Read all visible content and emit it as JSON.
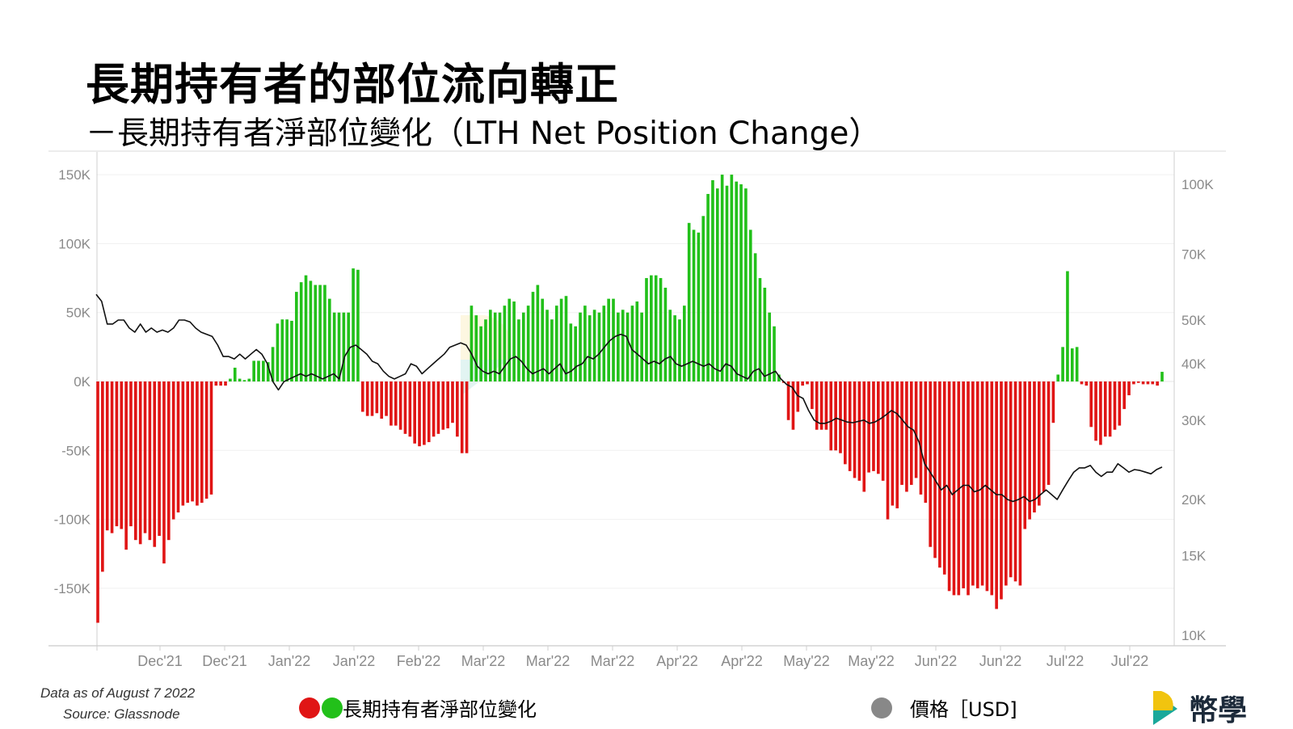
{
  "title": "長期持有者的部位流向轉正",
  "subtitle": "－長期持有者淨部位變化（LTH Net Position Change）",
  "footer": {
    "data_as_of": "Data as of August 7 2022",
    "source": "Source: Glassnode"
  },
  "legend": {
    "bars_label": "長期持有者淨部位變化",
    "price_label": "價格［USD]"
  },
  "logo": {
    "text": "幣學"
  },
  "colors": {
    "positive": "#22c01a",
    "negative": "#e01515",
    "price_line": "#111111",
    "legend_grey": "#888888",
    "logo_yellow": "#f1c40f",
    "logo_teal": "#1aa89a"
  },
  "chart_data": {
    "type": "bar",
    "x_tick_labels": [
      "Dec'21",
      "Dec'21",
      "Jan'22",
      "Jan'22",
      "Feb'22",
      "Mar'22",
      "Mar'22",
      "Mar'22",
      "Apr'22",
      "Apr'22",
      "May'22",
      "May'22",
      "Jun'22",
      "Jun'22",
      "Jul'22",
      "Jul'22"
    ],
    "y_left_ticks": [
      "150K",
      "100K",
      "50K",
      "0K",
      "-50K",
      "-100K",
      "-150K"
    ],
    "y_left_lim": [
      -175000,
      150000
    ],
    "y_right_ticks": [
      "100K",
      "70K",
      "50K",
      "40K",
      "30K",
      "20K",
      "15K",
      "10K"
    ],
    "y_right_scale": "log",
    "y_right_lim": [
      10000,
      100000
    ],
    "series": [
      {
        "name": "長期持有者淨部位變化",
        "type": "bar",
        "values": [
          -175000,
          -138000,
          -108000,
          -110000,
          -105000,
          -107000,
          -122000,
          -105000,
          -115000,
          -118000,
          -110000,
          -115000,
          -120000,
          -112000,
          -132000,
          -115000,
          -100000,
          -95000,
          -90000,
          -88000,
          -87000,
          -90000,
          -88000,
          -85000,
          -82000,
          -3000,
          -3000,
          -3000,
          2000,
          10000,
          2000,
          1000,
          2000,
          15000,
          15000,
          15000,
          14000,
          25000,
          42000,
          45000,
          45000,
          44000,
          65000,
          72000,
          77000,
          73000,
          70000,
          70000,
          70000,
          60000,
          50000,
          50000,
          50000,
          50000,
          82000,
          81000,
          -22000,
          -25000,
          -25000,
          -23000,
          -27000,
          -25000,
          -32000,
          -32000,
          -35000,
          -38000,
          -40000,
          -45000,
          -47000,
          -46000,
          -44000,
          -40000,
          -38000,
          -35000,
          -34000,
          -30000,
          -40000,
          -52000,
          -52000,
          55000,
          48000,
          40000,
          45000,
          52000,
          50000,
          50000,
          55000,
          60000,
          58000,
          45000,
          50000,
          55000,
          65000,
          70000,
          60000,
          52000,
          45000,
          55000,
          60000,
          62000,
          42000,
          40000,
          50000,
          55000,
          48000,
          52000,
          50000,
          55000,
          60000,
          60000,
          50000,
          52000,
          50000,
          55000,
          58000,
          50000,
          75000,
          77000,
          77000,
          75000,
          68000,
          52000,
          48000,
          45000,
          55000,
          115000,
          110000,
          108000,
          120000,
          136000,
          146000,
          140000,
          150000,
          142000,
          150000,
          145000,
          143000,
          140000,
          110000,
          93000,
          75000,
          68000,
          50000,
          40000,
          5000,
          -1000,
          -28000,
          -35000,
          -22000,
          -3000,
          -2000,
          -20000,
          -35000,
          -35000,
          -35000,
          -50000,
          -50000,
          -52000,
          -60000,
          -65000,
          -70000,
          -72000,
          -80000,
          -66000,
          -65000,
          -67000,
          -72000,
          -100000,
          -90000,
          -92000,
          -75000,
          -80000,
          -75000,
          -70000,
          -82000,
          -88000,
          -120000,
          -128000,
          -135000,
          -140000,
          -152000,
          -155000,
          -155000,
          -150000,
          -155000,
          -148000,
          -150000,
          -148000,
          -152000,
          -155000,
          -165000,
          -158000,
          -148000,
          -142000,
          -145000,
          -148000,
          -107000,
          -100000,
          -95000,
          -90000,
          -80000,
          -75000,
          -30000,
          5000,
          25000,
          80000,
          24000,
          25000,
          -2000,
          -3000,
          -33000,
          -43000,
          -46000,
          -40000,
          -40000,
          -35000,
          -32000,
          -20000,
          -10000,
          -2000,
          -1000,
          -2000,
          -2000,
          -2000,
          -3000,
          7000
        ]
      },
      {
        "name": "價格［USD]",
        "type": "line",
        "values": [
          57000,
          55000,
          49000,
          49000,
          50000,
          50000,
          48000,
          47000,
          49000,
          47000,
          48000,
          47000,
          47500,
          47000,
          48000,
          50000,
          50000,
          49500,
          48000,
          47000,
          46500,
          46000,
          44000,
          41500,
          41500,
          41000,
          42000,
          41000,
          42000,
          43000,
          42000,
          40000,
          36500,
          35000,
          36500,
          37000,
          37500,
          38000,
          37500,
          38000,
          37500,
          37000,
          37500,
          38000,
          37000,
          41500,
          43500,
          44000,
          43000,
          42000,
          40500,
          40000,
          38500,
          37500,
          37000,
          37500,
          38000,
          40000,
          39500,
          38000,
          39000,
          40000,
          41000,
          42000,
          43500,
          44000,
          44500,
          44000,
          42000,
          39500,
          38500,
          38000,
          38500,
          38000,
          39500,
          41000,
          41500,
          40500,
          39000,
          38000,
          38500,
          39000,
          38000,
          39000,
          40000,
          38000,
          38500,
          39500,
          40000,
          41500,
          41000,
          42000,
          43500,
          45000,
          46000,
          46500,
          46000,
          43000,
          42000,
          41000,
          40000,
          40500,
          40000,
          41000,
          41500,
          40000,
          39500,
          40000,
          40500,
          40000,
          39500,
          40000,
          39000,
          38500,
          40000,
          39500,
          38000,
          37500,
          37000,
          38500,
          39000,
          37500,
          38000,
          38500,
          37000,
          36000,
          35500,
          34000,
          33500,
          31500,
          30000,
          29500,
          29500,
          29800,
          30300,
          30000,
          29700,
          29600,
          29800,
          30000,
          29500,
          29700,
          30200,
          30800,
          31500,
          31000,
          30000,
          29000,
          28500,
          26800,
          24000,
          23000,
          22000,
          21000,
          21500,
          20500,
          21000,
          21500,
          21500,
          20800,
          21000,
          21500,
          21000,
          20500,
          20500,
          20000,
          19800,
          20000,
          20300,
          19800,
          20000,
          20500,
          21000,
          20500,
          20000,
          21000,
          22000,
          23000,
          23500,
          23500,
          23800,
          23000,
          22500,
          23000,
          23000,
          24000,
          23500,
          23000,
          23300,
          23200,
          23000,
          22800,
          23300,
          23600
        ]
      }
    ]
  }
}
